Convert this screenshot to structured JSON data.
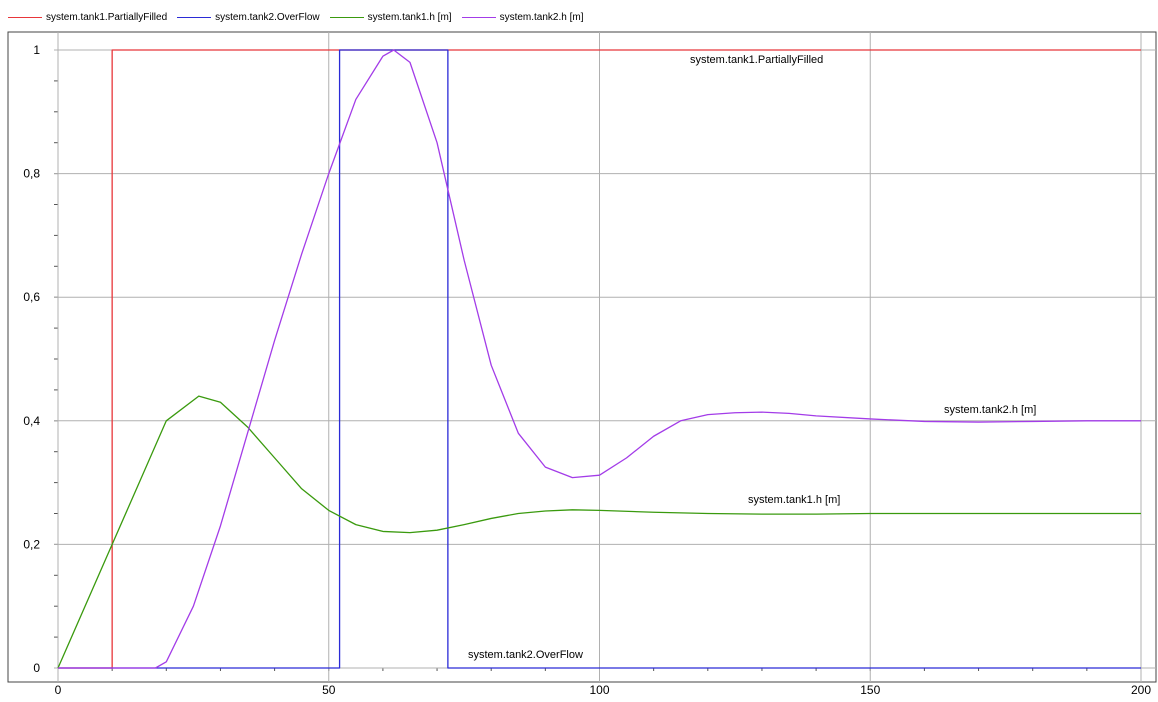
{
  "chart_data": {
    "type": "line",
    "xlim": [
      0,
      200
    ],
    "ylim": [
      0,
      1
    ],
    "x_ticks": [
      0,
      50,
      100,
      150,
      200
    ],
    "x_tick_labels": [
      "0",
      "50",
      "100",
      "150",
      "200"
    ],
    "y_ticks": [
      0,
      0.2,
      0.4,
      0.6,
      0.8,
      1
    ],
    "y_tick_labels": [
      "0",
      "0,2",
      "0,4",
      "0,6",
      "0,8",
      "1"
    ],
    "grid": true,
    "legend_position": "top",
    "series": [
      {
        "name": "system.tank1.PartiallyFilled",
        "color": "#e8363a",
        "step": true,
        "x": [
          0,
          10,
          10,
          200
        ],
        "y": [
          0,
          0,
          1,
          1
        ],
        "annotation": "system.tank1.PartiallyFilled"
      },
      {
        "name": "system.tank2.OverFlow",
        "color": "#2b2bd6",
        "step": true,
        "x": [
          0,
          52,
          52,
          72,
          72,
          200
        ],
        "y": [
          0,
          0,
          1,
          1,
          0,
          0
        ],
        "annotation": "system.tank2.OverFlow"
      },
      {
        "name": "system.tank1.h [m]",
        "color": "#3a9a0e",
        "x": [
          0,
          10,
          15,
          20,
          26,
          30,
          35,
          40,
          45,
          50,
          55,
          60,
          65,
          70,
          75,
          80,
          85,
          90,
          95,
          100,
          110,
          120,
          130,
          140,
          150,
          160,
          170,
          180,
          190,
          200
        ],
        "y": [
          0,
          0.2,
          0.3,
          0.4,
          0.44,
          0.43,
          0.39,
          0.34,
          0.29,
          0.255,
          0.232,
          0.221,
          0.219,
          0.223,
          0.232,
          0.242,
          0.25,
          0.254,
          0.256,
          0.255,
          0.252,
          0.25,
          0.249,
          0.249,
          0.25,
          0.25,
          0.25,
          0.25,
          0.25,
          0.25
        ],
        "annotation": "system.tank1.h [m]"
      },
      {
        "name": "system.tank2.h [m]",
        "color": "#a33ce8",
        "x": [
          0,
          18,
          20,
          25,
          30,
          35,
          40,
          45,
          50,
          55,
          60,
          62,
          65,
          70,
          75,
          80,
          85,
          90,
          95,
          100,
          105,
          110,
          115,
          120,
          125,
          130,
          135,
          140,
          150,
          160,
          170,
          180,
          190,
          200
        ],
        "y": [
          0,
          0,
          0.01,
          0.1,
          0.23,
          0.38,
          0.53,
          0.67,
          0.8,
          0.92,
          0.99,
          1.0,
          0.98,
          0.85,
          0.66,
          0.49,
          0.38,
          0.325,
          0.308,
          0.312,
          0.34,
          0.375,
          0.4,
          0.41,
          0.413,
          0.414,
          0.412,
          0.408,
          0.403,
          0.399,
          0.398,
          0.399,
          0.4,
          0.4
        ],
        "annotation": "system.tank2.h [m]"
      }
    ]
  }
}
